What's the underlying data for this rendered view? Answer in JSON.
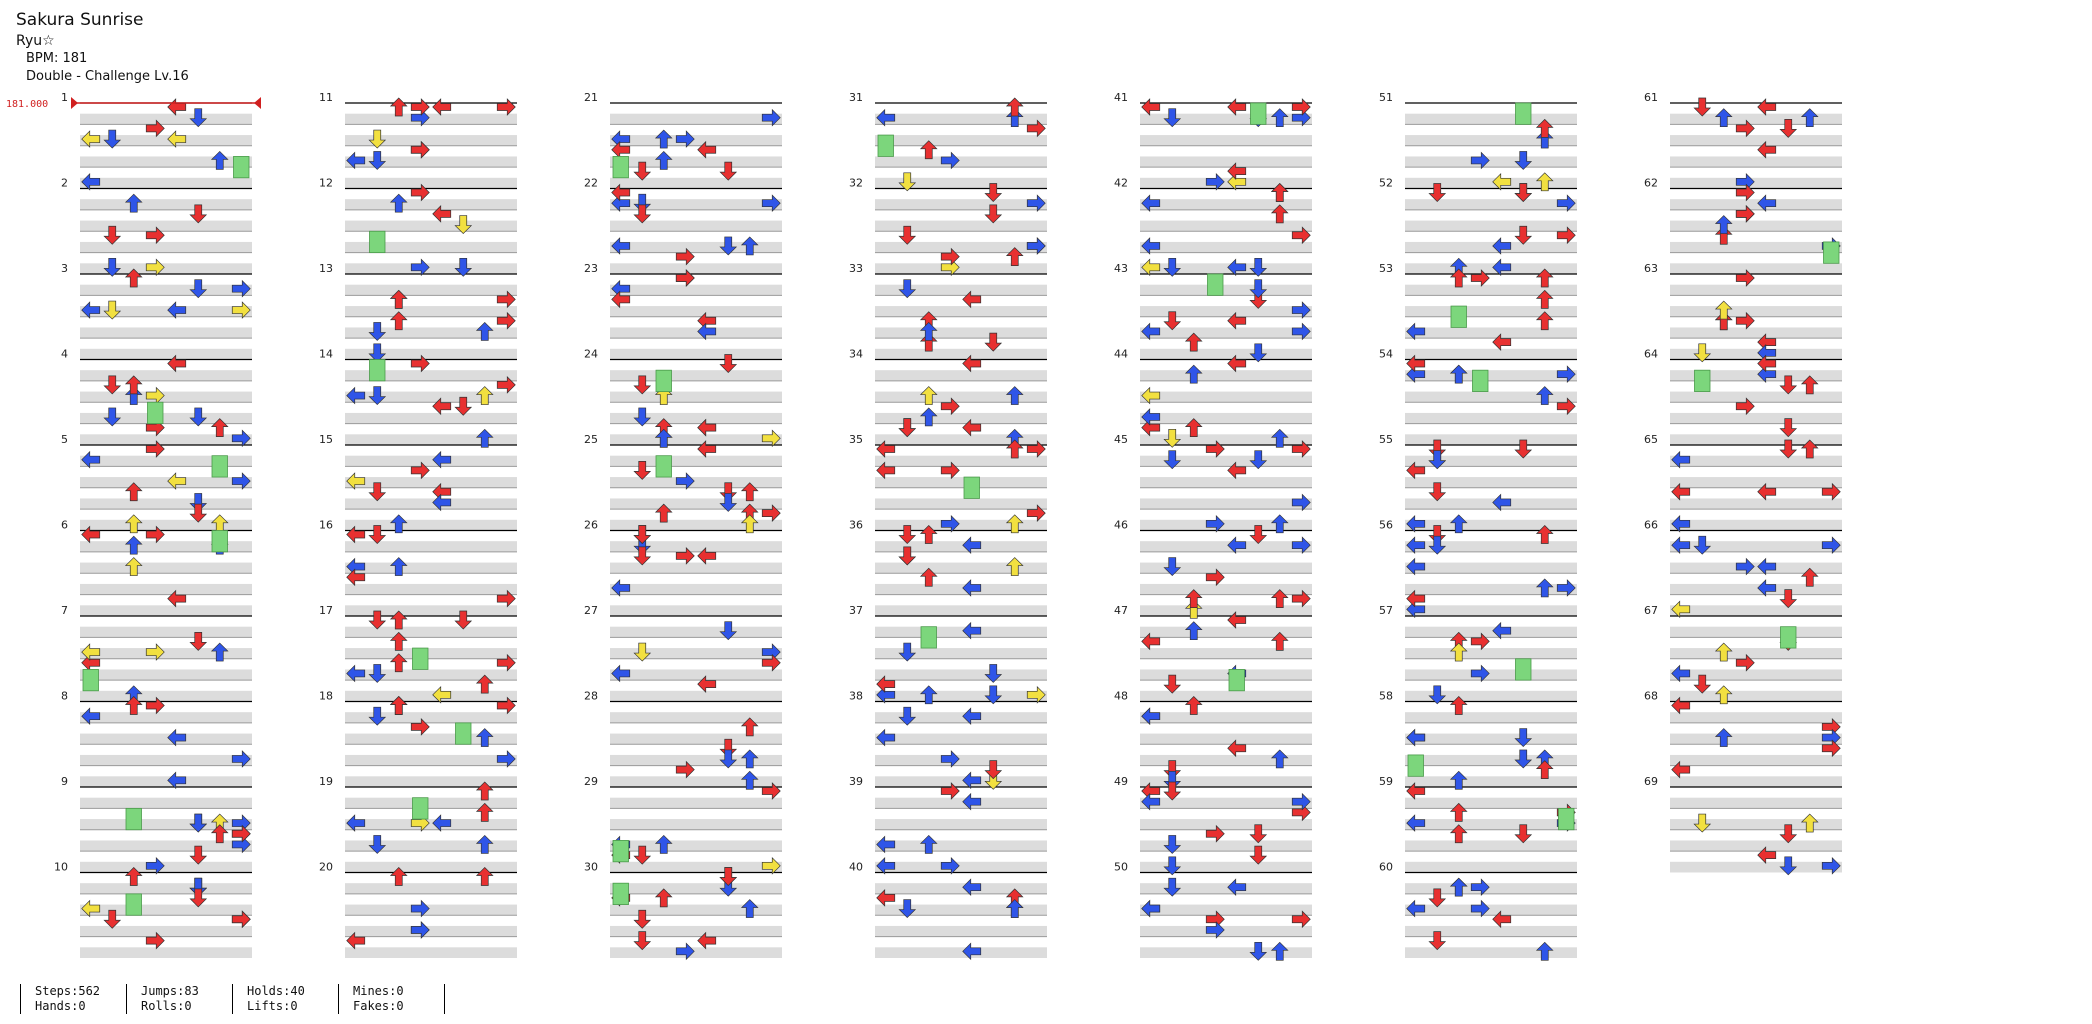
{
  "header": {
    "title": "Sakura Sunrise",
    "artist": "Ryu☆",
    "bpm_label": "BPM: 181",
    "difficulty_label": "Double - Challenge Lv.16"
  },
  "chart_data": {
    "type": "table",
    "initial_bpm_marker": "181.000",
    "measures": [
      "1",
      "2",
      "3",
      "4",
      "5",
      "6",
      "7",
      "8",
      "9",
      "10",
      "11",
      "12",
      "13",
      "14",
      "15",
      "16",
      "17",
      "18",
      "19",
      "20",
      "21",
      "22",
      "23",
      "24",
      "25",
      "26",
      "27",
      "28",
      "29",
      "30",
      "31",
      "32",
      "33",
      "34",
      "35",
      "36",
      "37",
      "38",
      "39",
      "40",
      "41",
      "42",
      "43",
      "44",
      "45",
      "46",
      "47",
      "48",
      "49",
      "50",
      "51",
      "52",
      "53",
      "54",
      "55",
      "56",
      "57",
      "58",
      "59",
      "60",
      "61",
      "62",
      "63",
      "64",
      "65",
      "66",
      "67",
      "68",
      "69"
    ],
    "note_colors": {
      "quarter": "#e83030",
      "eighth": "#2f55e8",
      "sixteenth": "#f2e040",
      "hold": "#7cd67c"
    },
    "note_glyphs": {
      "left": "←",
      "down": "↓",
      "up": "↑",
      "right": "→"
    }
  },
  "stats": {
    "steps": "Steps:562",
    "hands": "Hands:0",
    "jumps": "Jumps:83",
    "rolls": "Rolls:0",
    "holds": "Holds:40",
    "lifts": "Lifts:0",
    "mines": "Mines:0",
    "fakes": "Fakes:0"
  }
}
